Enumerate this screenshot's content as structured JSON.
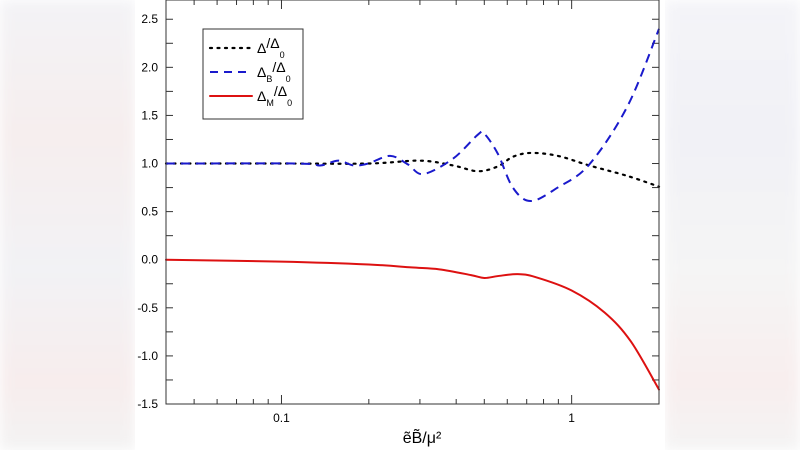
{
  "chart_data": {
    "type": "line",
    "title": "",
    "xlabel": "ẽB̃/μ²",
    "ylabel": "",
    "xscale": "log",
    "xlim": [
      0.04,
      2.0
    ],
    "ylim": [
      -1.5,
      2.7
    ],
    "xticks": [
      {
        "value": 0.1,
        "label": "0.1"
      },
      {
        "value": 1,
        "label": "1"
      }
    ],
    "yticks": [
      {
        "value": -1.5,
        "label": "-1.5"
      },
      {
        "value": -1.0,
        "label": "-1.0"
      },
      {
        "value": -0.5,
        "label": "-0.5"
      },
      {
        "value": 0.0,
        "label": "0.0"
      },
      {
        "value": 0.5,
        "label": "0.5"
      },
      {
        "value": 1.0,
        "label": "1.0"
      },
      {
        "value": 1.5,
        "label": "1.5"
      },
      {
        "value": 2.0,
        "label": "2.0"
      },
      {
        "value": 2.5,
        "label": "2.5"
      }
    ],
    "grid": false,
    "legend_position": "top-left",
    "series": [
      {
        "name": "Δ/Δ",
        "name_sub1": "",
        "name_sub2": "0",
        "color": "#000000",
        "style": "dotted",
        "x": [
          0.04,
          0.1,
          0.2,
          0.3,
          0.39,
          0.475,
          0.557,
          0.627,
          0.723,
          0.895,
          1.15,
          1.56,
          2.0
        ],
        "y": [
          1.0,
          1.0,
          1.0,
          1.03,
          0.98,
          0.92,
          0.97,
          1.07,
          1.11,
          1.08,
          0.98,
          0.87,
          0.76
        ]
      },
      {
        "name": "Δ/Δ",
        "name_sub1": "B",
        "name_sub2": "0",
        "color": "#1a1acc",
        "style": "dashed",
        "x": [
          0.04,
          0.114,
          0.136,
          0.157,
          0.177,
          0.199,
          0.237,
          0.273,
          0.308,
          0.39,
          0.475,
          0.5,
          0.557,
          0.627,
          0.723,
          0.895,
          1.15,
          1.56,
          2.0
        ],
        "y": [
          1.0,
          1.0,
          0.98,
          1.03,
          0.98,
          1.0,
          1.08,
          0.99,
          0.89,
          1.05,
          1.3,
          1.31,
          1.1,
          0.75,
          0.61,
          0.75,
          0.99,
          1.6,
          2.4
        ]
      },
      {
        "name": "Δ/Δ",
        "name_sub1": "M",
        "name_sub2": "0",
        "color": "#dd1111",
        "style": "solid",
        "x": [
          0.04,
          0.1,
          0.2,
          0.28,
          0.35,
          0.45,
          0.5,
          0.557,
          0.65,
          0.75,
          1.0,
          1.3,
          1.6,
          2.0
        ],
        "y": [
          0.0,
          -0.02,
          -0.05,
          -0.08,
          -0.1,
          -0.16,
          -0.19,
          -0.17,
          -0.15,
          -0.18,
          -0.32,
          -0.55,
          -0.85,
          -1.35
        ]
      }
    ]
  }
}
